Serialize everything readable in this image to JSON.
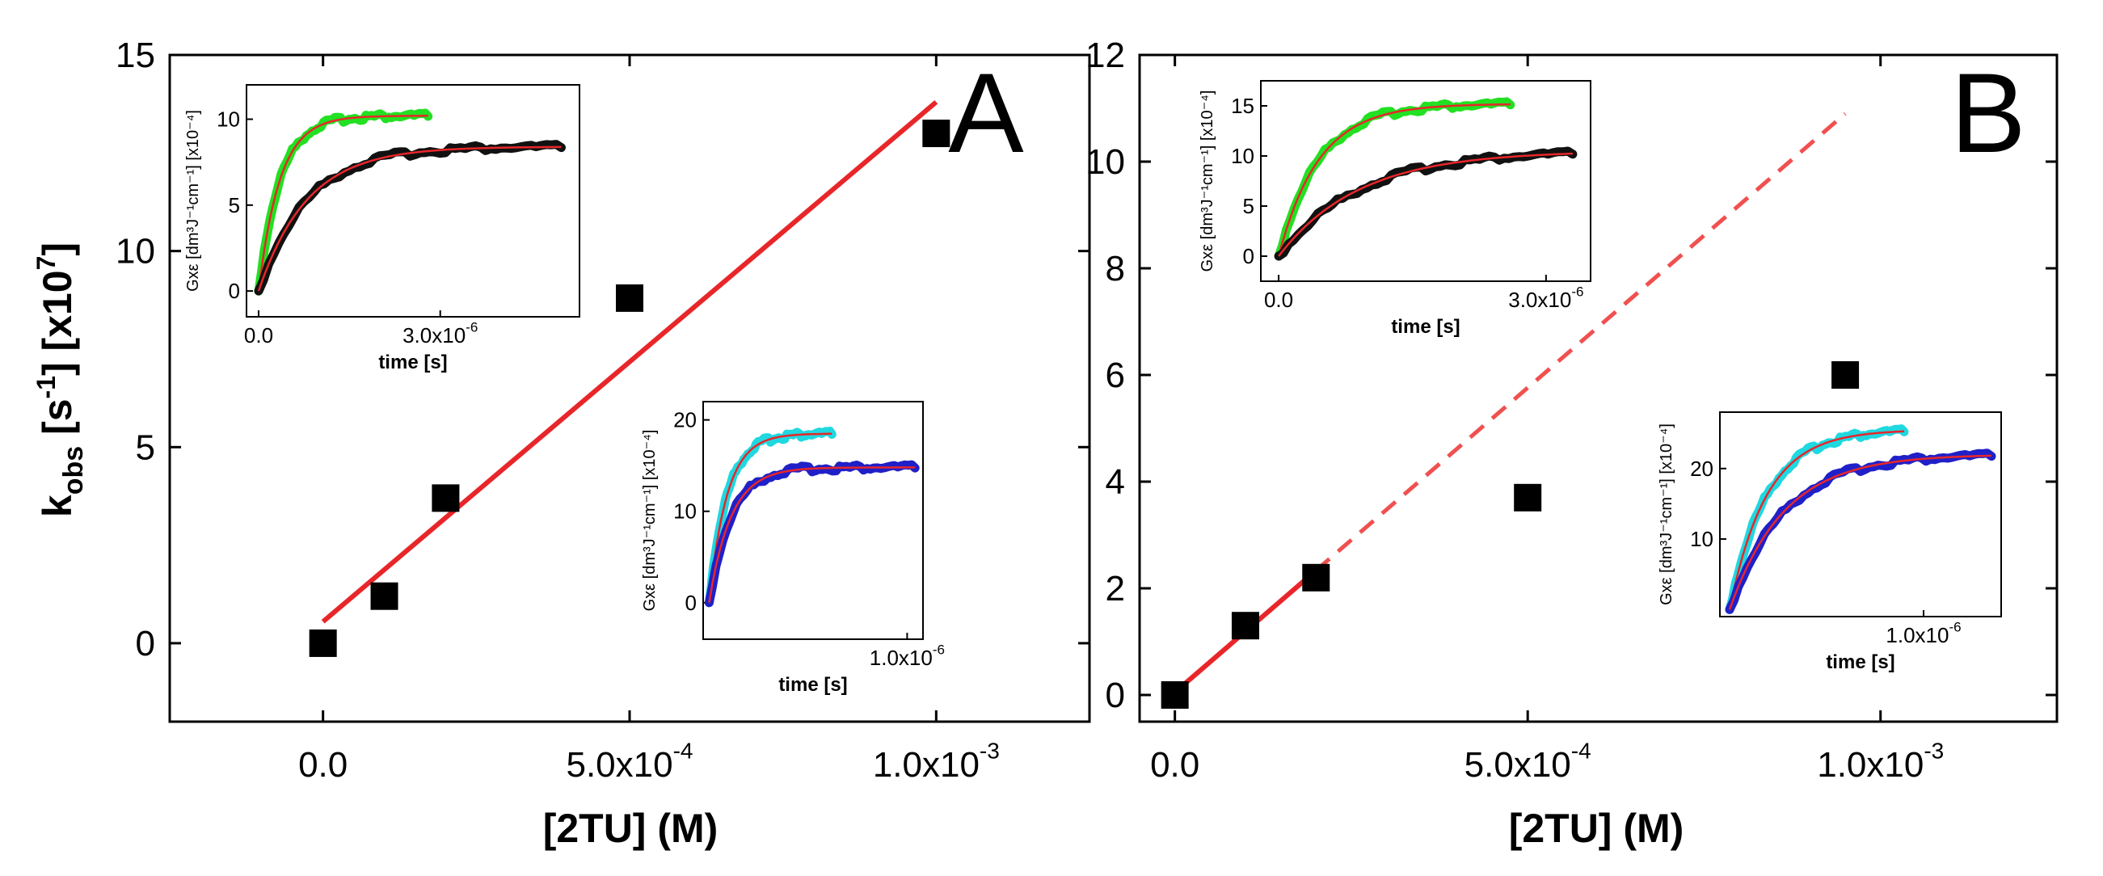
{
  "chart_data": [
    {
      "type": "scatter",
      "panel_label": "A",
      "xlabel": "[2TU] (M)",
      "ylabel_main": "k",
      "ylabel_sub": "obs",
      "ylabel_rest": " [s",
      "ylabel_sup1": "-1",
      "ylabel_rest2": "] [x10",
      "ylabel_sup2": "7",
      "ylabel_end": "]",
      "xlim": [
        -0.00025,
        0.00125
      ],
      "ylim": [
        -2,
        15
      ],
      "xticks": [
        {
          "value": 0.0,
          "label": "0.0"
        },
        {
          "value": 0.0005,
          "label": "5.0x10",
          "exp": "-4"
        },
        {
          "value": 0.001,
          "label": "1.0x10",
          "exp": "-3"
        }
      ],
      "yticks": [
        {
          "value": 0,
          "label": "0"
        },
        {
          "value": 5,
          "label": "5"
        },
        {
          "value": 10,
          "label": "10"
        },
        {
          "value": 15,
          "label": "15"
        }
      ],
      "points": [
        {
          "x": 0.0,
          "y": 0.0
        },
        {
          "x": 0.0001,
          "y": 1.2
        },
        {
          "x": 0.0002,
          "y": 3.7
        },
        {
          "x": 0.0005,
          "y": 8.8
        },
        {
          "x": 0.001,
          "y": 13.0
        }
      ],
      "fit": {
        "x1": 0.0,
        "y1": 0.55,
        "x2": 0.001,
        "y2": 13.8,
        "dashed_from": null
      },
      "insets": [
        {
          "name": "inset-a-upper",
          "ylabel": "Gxε [dm³J⁻¹cm⁻¹] [x10⁻⁴]",
          "xlabel": "time [s]",
          "xlim": [
            -2e-07,
            5.3e-06
          ],
          "ylim": [
            -1.5,
            12
          ],
          "xticks": [
            {
              "value": 0.0,
              "label": "0.0"
            },
            {
              "value": 3e-06,
              "label": "3.0x10",
              "exp": "-6"
            }
          ],
          "yticks": [
            {
              "value": 0,
              "label": "0"
            },
            {
              "value": 5,
              "label": "5"
            },
            {
              "value": 10,
              "label": "10"
            }
          ],
          "series": [
            {
              "name": "green-trace",
              "color": "#22e022",
              "ymax": 10.2,
              "tau": 3.5e-07,
              "tend": 2.8e-06
            },
            {
              "name": "black-trace",
              "color": "#111111",
              "ymax": 8.4,
              "tau": 8e-07,
              "tend": 5e-06
            }
          ]
        },
        {
          "name": "inset-a-lower",
          "ylabel": "Gxε [dm³J⁻¹cm⁻¹] [x10⁻⁴]",
          "xlabel": "time [s]",
          "xlim": [
            -3e-08,
            1.08e-06
          ],
          "ylim": [
            -4,
            22
          ],
          "xticks": [
            {
              "value": 1e-06,
              "label": "1.0x10",
              "exp": "-6"
            }
          ],
          "yticks": [
            {
              "value": 0,
              "label": "0"
            },
            {
              "value": 10,
              "label": "10"
            },
            {
              "value": 20,
              "label": "20"
            }
          ],
          "series": [
            {
              "name": "cyan-trace",
              "color": "#1fd8e0",
              "ymax": 18.5,
              "tau": 9e-08,
              "tend": 6.2e-07
            },
            {
              "name": "blue-trace",
              "color": "#2020c8",
              "ymax": 14.8,
              "tau": 1.1e-07,
              "tend": 1.04e-06
            }
          ]
        }
      ]
    },
    {
      "type": "scatter",
      "panel_label": "B",
      "xlabel": "[2TU] (M)",
      "xlim": [
        -5e-05,
        0.00125
      ],
      "ylim": [
        -0.5,
        12
      ],
      "xticks": [
        {
          "value": 0.0,
          "label": "0.0"
        },
        {
          "value": 0.0005,
          "label": "5.0x10",
          "exp": "-4"
        },
        {
          "value": 0.001,
          "label": "1.0x10",
          "exp": "-3"
        }
      ],
      "yticks": [
        {
          "value": 0,
          "label": "0"
        },
        {
          "value": 2,
          "label": "2"
        },
        {
          "value": 4,
          "label": "4"
        },
        {
          "value": 6,
          "label": "6"
        },
        {
          "value": 8,
          "label": "8"
        },
        {
          "value": 10,
          "label": "10"
        },
        {
          "value": 12,
          "label": "12"
        }
      ],
      "points": [
        {
          "x": 0.0,
          "y": 0.0
        },
        {
          "x": 0.0001,
          "y": 1.3
        },
        {
          "x": 0.0002,
          "y": 2.2
        },
        {
          "x": 0.0005,
          "y": 3.7
        },
        {
          "x": 0.00095,
          "y": 6.0
        }
      ],
      "fit": {
        "x1": 0.0,
        "y1": 0.05,
        "x2": 0.00095,
        "y2": 10.9,
        "dashed_from": 0.0002
      },
      "insets": [
        {
          "name": "inset-b-upper",
          "ylabel": "Gxε [dm³J⁻¹cm⁻¹] [x10⁻⁴]",
          "xlabel": "time [s]",
          "xlim": [
            -2e-07,
            3.5e-06
          ],
          "ylim": [
            -2.5,
            17.5
          ],
          "xticks": [
            {
              "value": 0.0,
              "label": "0.0"
            },
            {
              "value": 3e-06,
              "label": "3.0x10",
              "exp": "-6"
            }
          ],
          "yticks": [
            {
              "value": 0,
              "label": "0"
            },
            {
              "value": 5,
              "label": "5"
            },
            {
              "value": 10,
              "label": "10"
            },
            {
              "value": 15,
              "label": "15"
            }
          ],
          "series": [
            {
              "name": "green-trace",
              "color": "#22e022",
              "ymax": 15.2,
              "tau": 4.5e-07,
              "tend": 2.6e-06
            },
            {
              "name": "black-trace",
              "color": "#111111",
              "ymax": 10.5,
              "tau": 9e-07,
              "tend": 3.3e-06
            }
          ]
        },
        {
          "name": "inset-b-lower",
          "ylabel": "Gxε [dm³J⁻¹cm⁻¹] [x10⁻⁴]",
          "xlabel": "time [s]",
          "xlim": [
            -5e-08,
            1.4e-06
          ],
          "ylim": [
            -1,
            28
          ],
          "xticks": [
            {
              "value": 1e-06,
              "label": "1.0x10",
              "exp": "-6"
            }
          ],
          "yticks": [
            {
              "value": 10,
              "label": "10"
            },
            {
              "value": 20,
              "label": "20"
            }
          ],
          "series": [
            {
              "name": "cyan-trace",
              "color": "#1fd8e0",
              "ymax": 25.5,
              "tau": 1.9e-07,
              "tend": 9e-07
            },
            {
              "name": "blue-trace",
              "color": "#2020c8",
              "ymax": 22.0,
              "tau": 2.8e-07,
              "tend": 1.35e-06
            }
          ]
        }
      ]
    }
  ]
}
